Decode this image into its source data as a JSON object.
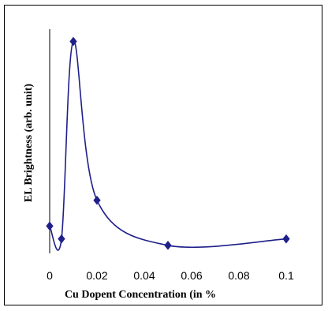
{
  "chart_data": {
    "type": "line",
    "xlabel": "Cu Dopent Concentration (in  %",
    "ylabel": "EL Brightness (arb. unit)",
    "x_ticks": [
      "0",
      "0.02",
      "0.04",
      "0.06",
      "0.08",
      "0.1"
    ],
    "xlim": [
      0,
      0.1
    ],
    "ylim": [
      0,
      100
    ],
    "grid": false,
    "legend": "none",
    "line_style": "smoothed",
    "marker": "diamond",
    "color": "#1f1f8a",
    "series": [
      {
        "x": [
          0,
          0.005,
          0.01,
          0.02,
          0.05,
          0.1
        ],
        "values": [
          12,
          6,
          98,
          24,
          3,
          6
        ]
      }
    ]
  }
}
